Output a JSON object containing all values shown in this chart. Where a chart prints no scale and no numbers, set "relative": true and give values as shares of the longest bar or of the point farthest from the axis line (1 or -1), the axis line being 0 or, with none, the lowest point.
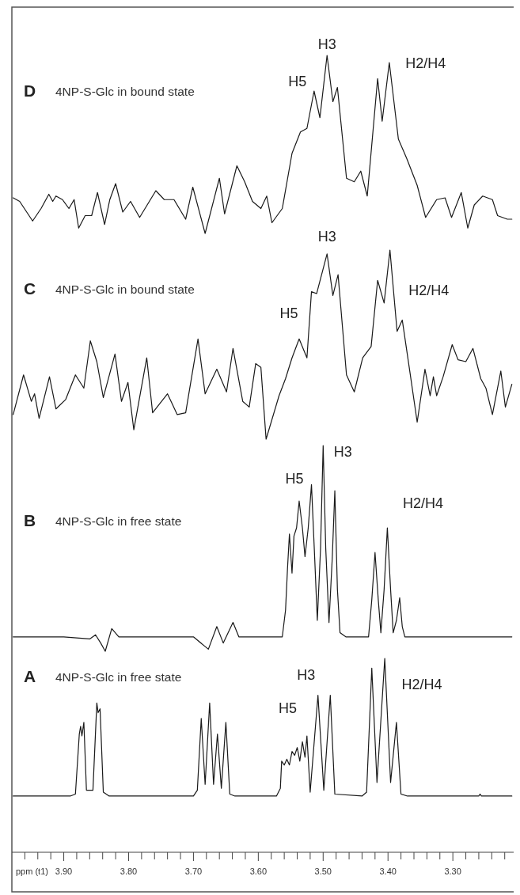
{
  "chart_data": [
    {
      "type": "line",
      "relative": true,
      "title": "D",
      "subtitle": "4NP-S-Glc in bound state",
      "xlim": [
        3.98,
        3.205
      ],
      "tick_labels": false,
      "series": [
        {
          "color": "#1a1a1a",
          "x": [
            3.978,
            3.968,
            3.948,
            3.935,
            3.923,
            3.917,
            3.912,
            3.902,
            3.892,
            3.884,
            3.877,
            3.867,
            3.857,
            3.848,
            3.837,
            3.829,
            3.82,
            3.809,
            3.797,
            3.783,
            3.768,
            3.758,
            3.745,
            3.73,
            3.712,
            3.701,
            3.682,
            3.66,
            3.652,
            3.633,
            3.621,
            3.609,
            3.596,
            3.587,
            3.579,
            3.563,
            3.548,
            3.535,
            3.525,
            3.514,
            3.505,
            3.494,
            3.485,
            3.478,
            3.464,
            3.452,
            3.442,
            3.432,
            3.416,
            3.409,
            3.398,
            3.384,
            3.371,
            3.355,
            3.342,
            3.325,
            3.312,
            3.302,
            3.287,
            3.277,
            3.267,
            3.254,
            3.239,
            3.231,
            3.216,
            3.209
          ],
          "values": [
            0.2,
            0.18,
            0.07,
            0.14,
            0.22,
            0.18,
            0.21,
            0.19,
            0.14,
            0.19,
            0.03,
            0.1,
            0.1,
            0.23,
            0.05,
            0.19,
            0.28,
            0.12,
            0.18,
            0.09,
            0.18,
            0.24,
            0.19,
            0.19,
            0.08,
            0.26,
            0,
            0.31,
            0.11,
            0.38,
            0.29,
            0.18,
            0.14,
            0.21,
            0.06,
            0.14,
            0.45,
            0.57,
            0.59,
            0.8,
            0.65,
            1,
            0.74,
            0.82,
            0.31,
            0.29,
            0.35,
            0.21,
            0.87,
            0.63,
            0.96,
            0.53,
            0.42,
            0.27,
            0.09,
            0.19,
            0.2,
            0.09,
            0.23,
            0.03,
            0.16,
            0.21,
            0.19,
            0.1,
            0.08,
            0.08
          ]
        }
      ],
      "annotations": [
        {
          "text": "H5",
          "x": 3.514,
          "y": 0.8
        },
        {
          "text": "H3",
          "x": 3.494,
          "y": 1
        },
        {
          "text": "H2/H4",
          "x": 3.398,
          "y": 0.96
        }
      ]
    },
    {
      "type": "line",
      "relative": true,
      "title": "C",
      "subtitle": "4NP-S-Glc in bound state",
      "xlim": [
        3.98,
        3.205
      ],
      "tick_labels": false,
      "series": [
        {
          "color": "#1a1a1a",
          "x": [
            3.978,
            3.962,
            3.95,
            3.945,
            3.938,
            3.922,
            3.912,
            3.897,
            3.882,
            3.869,
            3.859,
            3.849,
            3.839,
            3.821,
            3.811,
            3.801,
            3.792,
            3.772,
            3.763,
            3.74,
            3.725,
            3.712,
            3.693,
            3.682,
            3.664,
            3.649,
            3.639,
            3.624,
            3.614,
            3.604,
            3.596,
            3.588,
            3.568,
            3.558,
            3.548,
            3.537,
            3.525,
            3.518,
            3.51,
            3.494,
            3.485,
            3.477,
            3.464,
            3.452,
            3.439,
            3.426,
            3.416,
            3.406,
            3.397,
            3.386,
            3.378,
            3.366,
            3.355,
            3.343,
            3.335,
            3.33,
            3.325,
            3.315,
            3.301,
            3.292,
            3.28,
            3.269,
            3.257,
            3.249,
            3.239,
            3.226,
            3.219,
            3.209
          ],
          "values": [
            0.13,
            0.34,
            0.2,
            0.24,
            0.11,
            0.33,
            0.16,
            0.21,
            0.34,
            0.27,
            0.52,
            0.41,
            0.22,
            0.45,
            0.2,
            0.3,
            0.05,
            0.43,
            0.14,
            0.24,
            0.13,
            0.14,
            0.53,
            0.24,
            0.37,
            0.25,
            0.48,
            0.2,
            0.17,
            0.4,
            0.38,
            0,
            0.23,
            0.32,
            0.43,
            0.53,
            0.43,
            0.78,
            0.77,
            0.98,
            0.76,
            0.87,
            0.34,
            0.25,
            0.43,
            0.49,
            0.84,
            0.72,
            1,
            0.57,
            0.63,
            0.35,
            0.09,
            0.37,
            0.23,
            0.33,
            0.23,
            0.33,
            0.5,
            0.42,
            0.41,
            0.48,
            0.32,
            0.27,
            0.13,
            0.36,
            0.17,
            0.29
          ]
        }
      ],
      "annotations": [
        {
          "text": "H5",
          "x": 3.537,
          "y": 0.53
        },
        {
          "text": "H3",
          "x": 3.494,
          "y": 0.98
        },
        {
          "text": "H2/H4",
          "x": 3.397,
          "y": 1
        }
      ]
    },
    {
      "type": "line",
      "relative": true,
      "title": "B",
      "subtitle": "4NP-S-Glc in free state",
      "xlim": [
        3.98,
        3.205
      ],
      "tick_labels": false,
      "series": [
        {
          "color": "#1a1a1a",
          "x": [
            3.978,
            3.9,
            3.86,
            3.851,
            3.843,
            3.836,
            3.826,
            3.815,
            3.7,
            3.677,
            3.664,
            3.654,
            3.639,
            3.63,
            3.563,
            3.558,
            3.555,
            3.552,
            3.548,
            3.545,
            3.541,
            3.537,
            3.532,
            3.528,
            3.523,
            3.518,
            3.513,
            3.509,
            3.504,
            3.5,
            3.496,
            3.491,
            3.486,
            3.482,
            3.478,
            3.474,
            3.465,
            3.43,
            3.425,
            3.42,
            3.415,
            3.411,
            3.406,
            3.401,
            3.396,
            3.392,
            3.387,
            3.382,
            3.378,
            3.374,
            3.209
          ],
          "values": [
            0.07,
            0.07,
            0.06,
            0.08,
            0.04,
            0,
            0.11,
            0.07,
            0.07,
            0.01,
            0.12,
            0.04,
            0.14,
            0.07,
            0.07,
            0.2,
            0.4,
            0.57,
            0.38,
            0.56,
            0.6,
            0.73,
            0.6,
            0.46,
            0.6,
            0.81,
            0.45,
            0.15,
            0.5,
            1,
            0.5,
            0.14,
            0.45,
            0.78,
            0.3,
            0.09,
            0.07,
            0.07,
            0.25,
            0.48,
            0.25,
            0.09,
            0.3,
            0.6,
            0.3,
            0.09,
            0.15,
            0.26,
            0.12,
            0.07,
            0.07
          ]
        }
      ],
      "annotations": [
        {
          "text": "H5",
          "x": 3.537,
          "y": 0.73
        },
        {
          "text": "H3",
          "x": 3.5,
          "y": 1
        },
        {
          "text": "H2/H4",
          "x": 3.401,
          "y": 0.6
        }
      ]
    },
    {
      "type": "line",
      "relative": true,
      "title": "A",
      "subtitle": "4NP-S-Glc in free state",
      "xlim": [
        3.98,
        3.205
      ],
      "tick_labels": "x",
      "xlabel": "ppm (t1)",
      "xticks": [
        {
          "value": 3.96,
          "label": null
        },
        {
          "value": 3.94,
          "label": null
        },
        {
          "value": 3.92,
          "label": null
        },
        {
          "value": 3.9,
          "label": "3.90"
        },
        {
          "value": 3.88,
          "label": null
        },
        {
          "value": 3.86,
          "label": null
        },
        {
          "value": 3.84,
          "label": null
        },
        {
          "value": 3.82,
          "label": null
        },
        {
          "value": 3.8,
          "label": "3.80"
        },
        {
          "value": 3.78,
          "label": null
        },
        {
          "value": 3.76,
          "label": null
        },
        {
          "value": 3.74,
          "label": null
        },
        {
          "value": 3.72,
          "label": null
        },
        {
          "value": 3.7,
          "label": "3.70"
        },
        {
          "value": 3.68,
          "label": null
        },
        {
          "value": 3.66,
          "label": null
        },
        {
          "value": 3.64,
          "label": null
        },
        {
          "value": 3.62,
          "label": null
        },
        {
          "value": 3.6,
          "label": "3.60"
        },
        {
          "value": 3.58,
          "label": null
        },
        {
          "value": 3.56,
          "label": null
        },
        {
          "value": 3.54,
          "label": null
        },
        {
          "value": 3.52,
          "label": null
        },
        {
          "value": 3.5,
          "label": "3.50"
        },
        {
          "value": 3.48,
          "label": null
        },
        {
          "value": 3.46,
          "label": null
        },
        {
          "value": 3.44,
          "label": null
        },
        {
          "value": 3.42,
          "label": null
        },
        {
          "value": 3.4,
          "label": "3.40"
        },
        {
          "value": 3.38,
          "label": null
        },
        {
          "value": 3.36,
          "label": null
        },
        {
          "value": 3.34,
          "label": null
        },
        {
          "value": 3.32,
          "label": null
        },
        {
          "value": 3.3,
          "label": "3.30"
        },
        {
          "value": 3.28,
          "label": null
        },
        {
          "value": 3.26,
          "label": null
        },
        {
          "value": 3.24,
          "label": null
        },
        {
          "value": 3.22,
          "label": null
        }
      ],
      "series": [
        {
          "color": "#1a1a1a",
          "x": [
            3.978,
            3.89,
            3.882,
            3.876,
            3.874,
            3.872,
            3.869,
            3.865,
            3.855,
            3.849,
            3.847,
            3.844,
            3.839,
            3.83,
            3.7,
            3.694,
            3.688,
            3.682,
            3.675,
            3.669,
            3.663,
            3.657,
            3.65,
            3.644,
            3.636,
            3.572,
            3.566,
            3.564,
            3.56,
            3.556,
            3.552,
            3.548,
            3.544,
            3.54,
            3.536,
            3.532,
            3.528,
            3.525,
            3.52,
            3.508,
            3.499,
            3.489,
            3.482,
            3.44,
            3.433,
            3.425,
            3.417,
            3.405,
            3.396,
            3.387,
            3.38,
            3.37,
            3.26,
            3.258,
            3.256,
            3.209
          ],
          "values": [
            0.29,
            0.29,
            0.3,
            0.61,
            0.65,
            0.6,
            0.67,
            0.32,
            0.32,
            0.77,
            0.72,
            0.74,
            0.31,
            0.29,
            0.29,
            0.32,
            0.69,
            0.35,
            0.77,
            0.35,
            0.61,
            0.33,
            0.67,
            0.3,
            0.29,
            0.29,
            0.33,
            0.47,
            0.45,
            0.48,
            0.45,
            0.52,
            0.5,
            0.54,
            0.47,
            0.57,
            0.49,
            0.6,
            0.31,
            0.81,
            0.32,
            0.81,
            0.3,
            0.29,
            0.31,
            0.95,
            0.36,
            1,
            0.36,
            0.67,
            0.3,
            0.29,
            0.29,
            0.3,
            0.29,
            0.29
          ]
        }
      ],
      "annotations": [
        {
          "text": "H5",
          "x": 3.54,
          "y": 0.54
        },
        {
          "text": "H3",
          "x": 3.508,
          "y": 0.81
        },
        {
          "text": "H2/H4",
          "x": 3.405,
          "y": 1
        }
      ]
    }
  ]
}
